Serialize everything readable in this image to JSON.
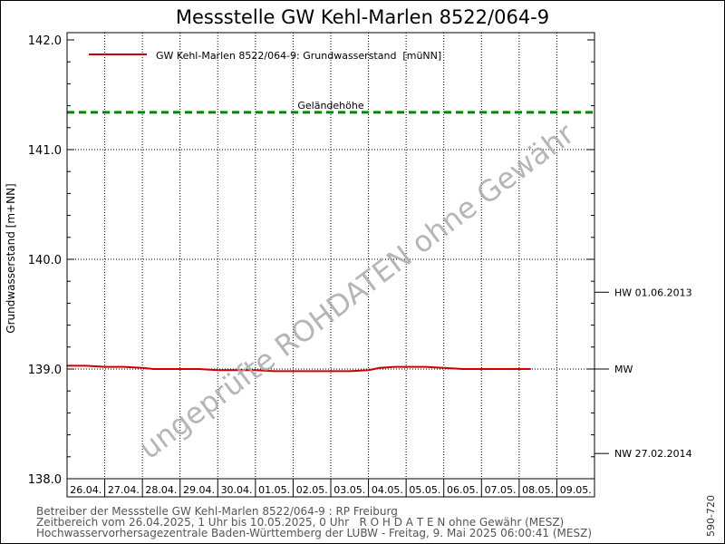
{
  "chart_data": {
    "type": "line",
    "title": "Messstelle GW Kehl-Marlen 8522/064-9",
    "ylabel": "Grundwasserstand [m+NN]",
    "xlabel": "",
    "ylim": [
      138.0,
      142.0
    ],
    "y_ticks": [
      "138.0",
      "139.0",
      "140.0",
      "141.0",
      "142.0"
    ],
    "x_ticks": [
      "26.04.",
      "27.04.",
      "28.04.",
      "29.04.",
      "30.04.",
      "01.05.",
      "02.05.",
      "03.05.",
      "04.05.",
      "05.05.",
      "06.05.",
      "07.05.",
      "08.05.",
      "09.05."
    ],
    "xlim_days": [
      0,
      14
    ],
    "grid": true,
    "legend_position": "top-left",
    "series": [
      {
        "name": "GW Kehl-Marlen 8522/064-9: Grundwasserstand  [müNN]",
        "color": "#cc0000",
        "x_days": [
          0,
          0.5,
          1,
          1.5,
          2,
          2.3,
          3,
          3.5,
          4,
          4.5,
          5,
          5.5,
          6,
          6.5,
          7,
          7.5,
          8,
          8.3,
          8.7,
          9,
          9.5,
          10,
          10.5,
          11,
          11.5,
          12,
          12.3
        ],
        "values": [
          139.03,
          139.03,
          139.02,
          139.02,
          139.01,
          139.0,
          139.0,
          139.0,
          138.99,
          138.99,
          138.99,
          138.98,
          138.98,
          138.98,
          138.98,
          138.98,
          138.99,
          139.01,
          139.02,
          139.02,
          139.02,
          139.01,
          139.0,
          139.0,
          139.0,
          139.0,
          139.0
        ]
      }
    ],
    "reference_lines": [
      {
        "label": "Geländehöhe",
        "value": 141.34,
        "color": "#008800",
        "style": "dashed"
      },
      {
        "label": "MW",
        "value": 139.0,
        "color": "#000000",
        "style": "dotted"
      }
    ],
    "right_markers": [
      {
        "label": "HW 01.06.2013",
        "value": 139.7
      },
      {
        "label": "MW",
        "value": 139.0
      },
      {
        "label": "NW 27.02.2014",
        "value": 138.23
      }
    ],
    "watermark": "ungeprüfte ROHDATEN ohne Gewähr"
  },
  "footer": {
    "line1": "Betreiber der Messstelle GW Kehl-Marlen 8522/064-9 : RP Freiburg",
    "line2": "Zeitbereich vom 26.04.2025, 1 Uhr bis 10.05.2025, 0 Uhr   R O H D A T E N ohne Gewähr (MESZ)",
    "line3": "Hochwasservorhersagezentrale Baden-Württemberg der LUBW - Freitag, 9. Mai 2025 06:00:41 (MESZ)"
  },
  "side_code": "590-720"
}
